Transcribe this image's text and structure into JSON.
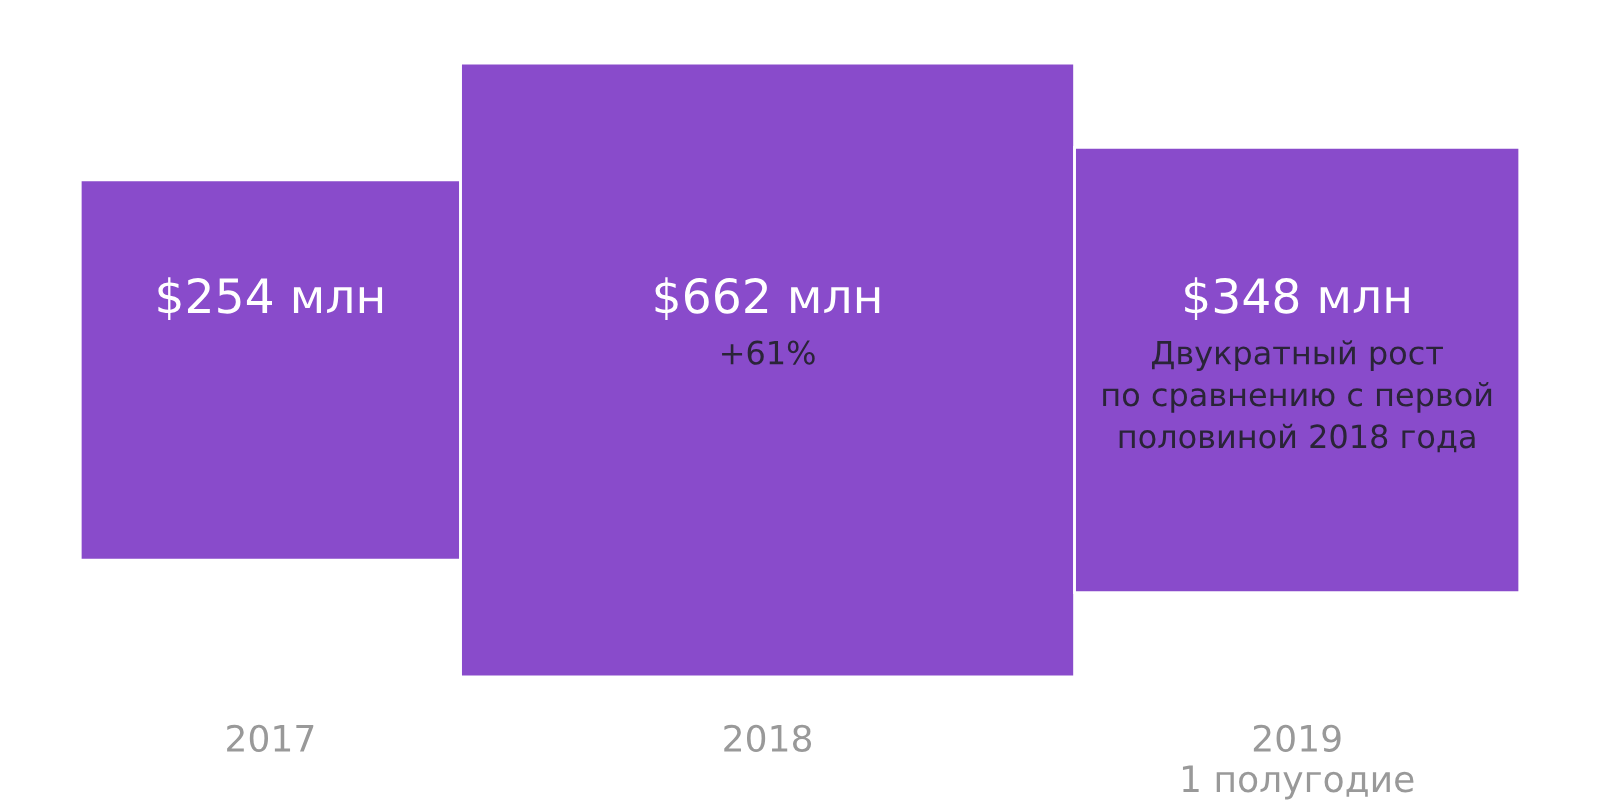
{
  "chart_data": {
    "type": "other",
    "categories": [
      "2017",
      "2018",
      "2019\n1 полугодие"
    ],
    "values": [
      254,
      662,
      348
    ],
    "color": "#894bcb",
    "value_labels": [
      "$254 млн",
      "$662 млн",
      "$348 млн"
    ],
    "annotations": [
      "+61%",
      "Двукратный рост\nпо сравнению с первой\nполовиной 2018 года"
    ]
  }
}
